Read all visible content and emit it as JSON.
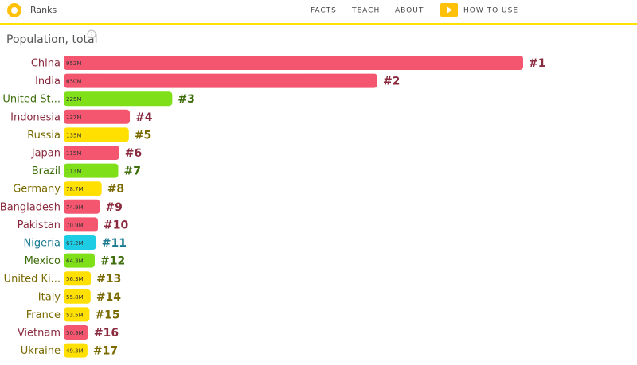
{
  "header": {
    "brand": "Ranks",
    "nav": [
      "FACTS",
      "TEACH",
      "ABOUT",
      "HOW TO USE"
    ]
  },
  "chart_data": {
    "type": "bar",
    "orientation": "horizontal",
    "title": "Population, total",
    "categories": [
      "China",
      "India",
      "United St...",
      "Indonesia",
      "Russia",
      "Japan",
      "Brazil",
      "Germany",
      "Bangladesh",
      "Pakistan",
      "Nigeria",
      "Mexico",
      "United Ki...",
      "Italy",
      "France",
      "Vietnam",
      "Ukraine"
    ],
    "values": [
      952,
      650,
      225,
      137,
      135,
      115,
      113,
      78.7,
      74.9,
      70.9,
      67.2,
      64.3,
      56.3,
      55.8,
      53.5,
      50.9,
      49.3
    ],
    "value_labels": [
      "952M",
      "650M",
      "225M",
      "137M",
      "135M",
      "115M",
      "113M",
      "78.7M",
      "74.9M",
      "70.9M",
      "67.2M",
      "64.3M",
      "56.3M",
      "55.8M",
      "53.5M",
      "50.9M",
      "49.3M"
    ],
    "ranks": [
      "#1",
      "#2",
      "#3",
      "#4",
      "#5",
      "#6",
      "#7",
      "#8",
      "#9",
      "#10",
      "#11",
      "#12",
      "#13",
      "#14",
      "#15",
      "#16",
      "#17"
    ],
    "colors": [
      "#f5566f",
      "#f5566f",
      "#7fe01a",
      "#f5566f",
      "#ffe000",
      "#f5566f",
      "#7fe01a",
      "#ffe000",
      "#f5566f",
      "#f5566f",
      "#1ecde4",
      "#7fe01a",
      "#ffe000",
      "#ffe000",
      "#ffe000",
      "#f5566f",
      "#ffe000"
    ],
    "label_colors": [
      "#8a2a3e",
      "#8a2a3e",
      "#3f6e0c",
      "#8a2a3e",
      "#7a6a00",
      "#8a2a3e",
      "#3f6e0c",
      "#7a6a00",
      "#8a2a3e",
      "#8a2a3e",
      "#1a7a90",
      "#3f6e0c",
      "#7a6a00",
      "#7a6a00",
      "#7a6a00",
      "#8a2a3e",
      "#7a6a00"
    ]
  }
}
